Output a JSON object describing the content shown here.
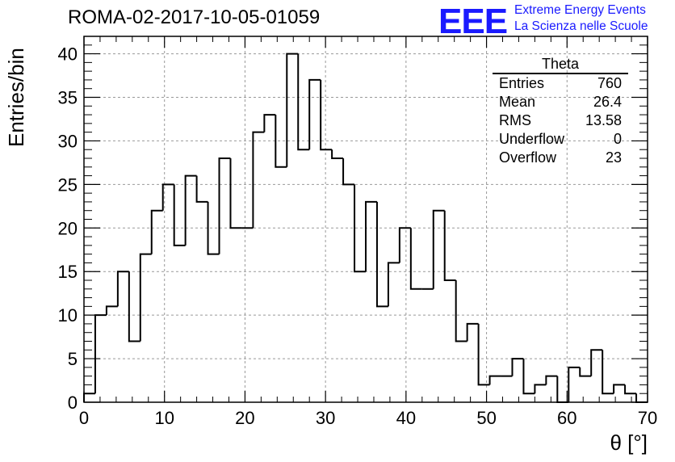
{
  "title": "ROMA-02-2017-10-05-01059",
  "logo": {
    "mark": "EEE",
    "line1": "Extreme Energy Events",
    "line2": "La Scienza nelle Scuole"
  },
  "stats": {
    "name": "Theta",
    "rows": [
      {
        "label": "Entries",
        "value": "760"
      },
      {
        "label": "Mean",
        "value": "26.4"
      },
      {
        "label": "RMS",
        "value": "13.58"
      },
      {
        "label": "Underflow",
        "value": "0"
      },
      {
        "label": "Overflow",
        "value": "23"
      }
    ]
  },
  "chart_data": {
    "type": "histogram",
    "xlabel": "θ [°]",
    "ylabel": "Entries/bin",
    "xlim": [
      0,
      70
    ],
    "ylim": [
      0,
      42
    ],
    "xticks": [
      "0",
      "10",
      "20",
      "30",
      "40",
      "50",
      "60",
      "70"
    ],
    "yticks": [
      "0",
      "5",
      "10",
      "15",
      "20",
      "25",
      "30",
      "35",
      "40"
    ],
    "grid": true,
    "bin_width": 1.4,
    "bin_edges_start": 0,
    "values": [
      1,
      10,
      11,
      15,
      7,
      17,
      22,
      25,
      18,
      26,
      23,
      17,
      28,
      20,
      20,
      31,
      33,
      27,
      40,
      29,
      37,
      29,
      28,
      25,
      15,
      23,
      11,
      16,
      20,
      13,
      13,
      22,
      14,
      7,
      9,
      2,
      3,
      3,
      5,
      1,
      2,
      3,
      0,
      4,
      3,
      6,
      1,
      2,
      1,
      0
    ]
  }
}
